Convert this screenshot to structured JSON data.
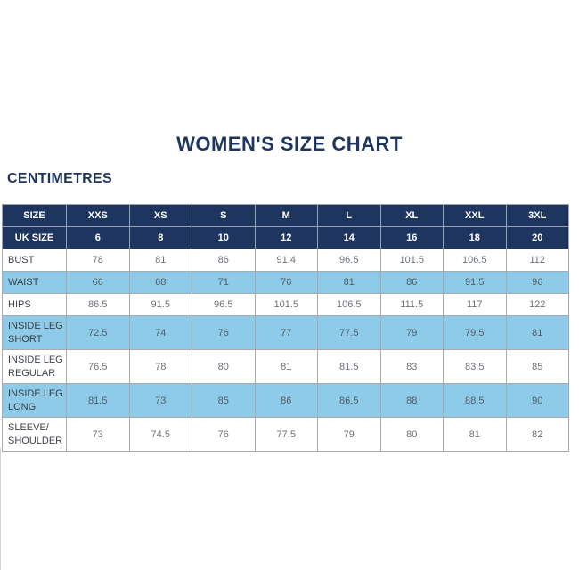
{
  "page": {
    "title": "WOMEN'S SIZE CHART",
    "units_label": "CENTIMETRES"
  },
  "colors": {
    "navy": "#1e355f",
    "light_blue": "#8ecbe8",
    "border_gray": "#a7abaf",
    "header_border": "#97a1b6",
    "label_text": "#3f4449",
    "value_text": "#6c7176",
    "value_text_on_blue": "#4f5f6b"
  },
  "chart_data": {
    "type": "table",
    "title": "WOMEN'S SIZE CHART",
    "units": "CENTIMETRES",
    "header_rows": [
      {
        "label": "SIZE",
        "values": [
          "XXS",
          "XS",
          "S",
          "M",
          "L",
          "XL",
          "XXL",
          "3XL"
        ]
      },
      {
        "label": "UK SIZE",
        "values": [
          "6",
          "8",
          "10",
          "12",
          "14",
          "16",
          "18",
          "20"
        ]
      }
    ],
    "rows": [
      {
        "label": "BUST",
        "values": [
          78,
          81,
          86,
          91.4,
          96.5,
          101.5,
          106.5,
          112
        ]
      },
      {
        "label": "WAIST",
        "values": [
          66,
          68,
          71,
          76,
          81,
          86,
          91.5,
          96
        ]
      },
      {
        "label": "HIPS",
        "values": [
          86.5,
          91.5,
          96.5,
          101.5,
          106.5,
          111.5,
          117,
          122
        ]
      },
      {
        "label": "INSIDE LEG\nSHORT",
        "values": [
          72.5,
          74,
          76,
          77,
          77.5,
          79,
          79.5,
          81
        ]
      },
      {
        "label": "INSIDE LEG\nREGULAR",
        "values": [
          76.5,
          78,
          80,
          81,
          81.5,
          83,
          83.5,
          85
        ]
      },
      {
        "label": "INSIDE LEG\nLONG",
        "values": [
          81.5,
          73,
          85,
          86,
          86.5,
          88,
          88.5,
          90
        ]
      },
      {
        "label": "SLEEVE/\nSHOULDER",
        "values": [
          73,
          74.5,
          76,
          77.5,
          79,
          80,
          81,
          82
        ]
      }
    ]
  }
}
